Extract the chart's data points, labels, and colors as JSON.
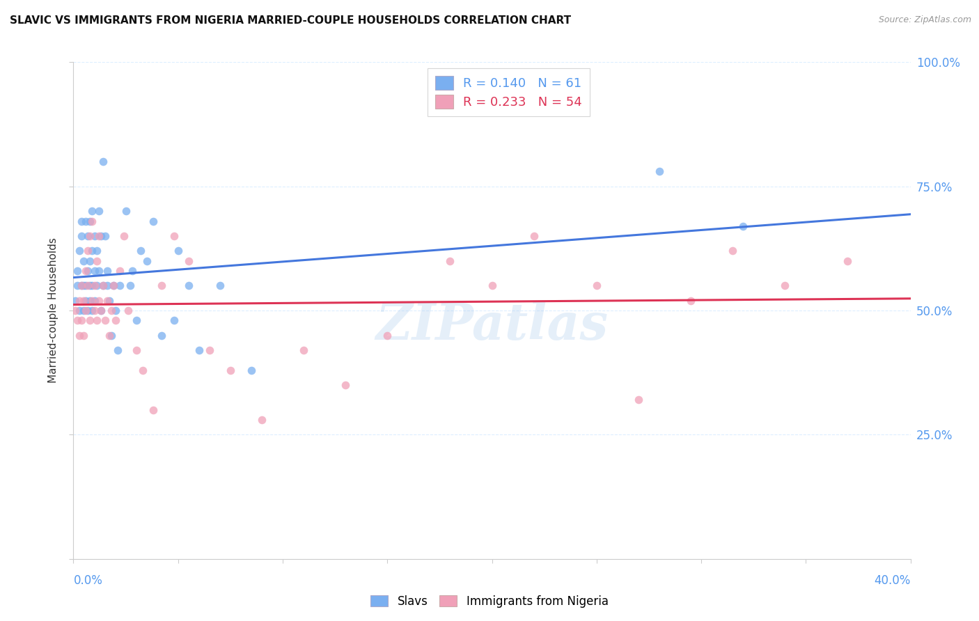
{
  "title": "SLAVIC VS IMMIGRANTS FROM NIGERIA MARRIED-COUPLE HOUSEHOLDS CORRELATION CHART",
  "source": "Source: ZipAtlas.com",
  "ylabel": "Married-couple Households",
  "legend1_R": "0.140",
  "legend1_N": "61",
  "legend2_R": "0.233",
  "legend2_N": "54",
  "legend_label1": "Slavs",
  "legend_label2": "Immigrants from Nigeria",
  "watermark": "ZIPatlas",
  "blue_scatter_color": "#7aaff0",
  "pink_scatter_color": "#f0a0b8",
  "blue_line_color": "#4477dd",
  "pink_line_color": "#dd3355",
  "axis_color": "#5599ee",
  "grid_color": "#ddeeff",
  "title_color": "#111111",
  "source_color": "#999999",
  "slavs_x": [
    0.001,
    0.002,
    0.002,
    0.003,
    0.003,
    0.004,
    0.004,
    0.004,
    0.005,
    0.005,
    0.005,
    0.006,
    0.006,
    0.006,
    0.007,
    0.007,
    0.007,
    0.008,
    0.008,
    0.008,
    0.008,
    0.009,
    0.009,
    0.009,
    0.009,
    0.01,
    0.01,
    0.01,
    0.011,
    0.011,
    0.012,
    0.012,
    0.013,
    0.013,
    0.014,
    0.014,
    0.015,
    0.016,
    0.016,
    0.017,
    0.018,
    0.019,
    0.02,
    0.021,
    0.022,
    0.025,
    0.027,
    0.028,
    0.03,
    0.032,
    0.035,
    0.038,
    0.042,
    0.048,
    0.05,
    0.055,
    0.06,
    0.07,
    0.085,
    0.28,
    0.32
  ],
  "slavs_y": [
    0.52,
    0.55,
    0.58,
    0.5,
    0.62,
    0.55,
    0.65,
    0.68,
    0.5,
    0.55,
    0.6,
    0.52,
    0.55,
    0.68,
    0.5,
    0.58,
    0.65,
    0.52,
    0.55,
    0.6,
    0.68,
    0.5,
    0.55,
    0.62,
    0.7,
    0.52,
    0.58,
    0.65,
    0.55,
    0.62,
    0.58,
    0.7,
    0.5,
    0.65,
    0.55,
    0.8,
    0.65,
    0.58,
    0.55,
    0.52,
    0.45,
    0.55,
    0.5,
    0.42,
    0.55,
    0.7,
    0.55,
    0.58,
    0.48,
    0.62,
    0.6,
    0.68,
    0.45,
    0.48,
    0.62,
    0.55,
    0.42,
    0.55,
    0.38,
    0.78,
    0.67
  ],
  "nigeria_x": [
    0.001,
    0.002,
    0.003,
    0.003,
    0.004,
    0.004,
    0.005,
    0.005,
    0.006,
    0.006,
    0.007,
    0.007,
    0.008,
    0.008,
    0.009,
    0.009,
    0.01,
    0.01,
    0.011,
    0.011,
    0.012,
    0.012,
    0.013,
    0.014,
    0.015,
    0.016,
    0.017,
    0.018,
    0.019,
    0.02,
    0.022,
    0.024,
    0.026,
    0.03,
    0.033,
    0.038,
    0.042,
    0.048,
    0.055,
    0.065,
    0.075,
    0.09,
    0.11,
    0.13,
    0.15,
    0.18,
    0.2,
    0.22,
    0.25,
    0.27,
    0.295,
    0.315,
    0.34,
    0.37
  ],
  "nigeria_y": [
    0.5,
    0.48,
    0.52,
    0.45,
    0.55,
    0.48,
    0.52,
    0.45,
    0.58,
    0.5,
    0.55,
    0.62,
    0.48,
    0.65,
    0.52,
    0.68,
    0.5,
    0.55,
    0.6,
    0.48,
    0.52,
    0.65,
    0.5,
    0.55,
    0.48,
    0.52,
    0.45,
    0.5,
    0.55,
    0.48,
    0.58,
    0.65,
    0.5,
    0.42,
    0.38,
    0.3,
    0.55,
    0.65,
    0.6,
    0.42,
    0.38,
    0.28,
    0.42,
    0.35,
    0.45,
    0.6,
    0.55,
    0.65,
    0.55,
    0.32,
    0.52,
    0.62,
    0.55,
    0.6
  ],
  "xlim": [
    0.0,
    0.4
  ],
  "ylim": [
    0.0,
    1.0
  ],
  "yticks": [
    0.0,
    0.25,
    0.5,
    0.75,
    1.0
  ],
  "ytick_labels_right": [
    "",
    "25.0%",
    "50.0%",
    "75.0%",
    "100.0%"
  ],
  "xtick_labels_outer": [
    "0.0%",
    "40.0%"
  ]
}
